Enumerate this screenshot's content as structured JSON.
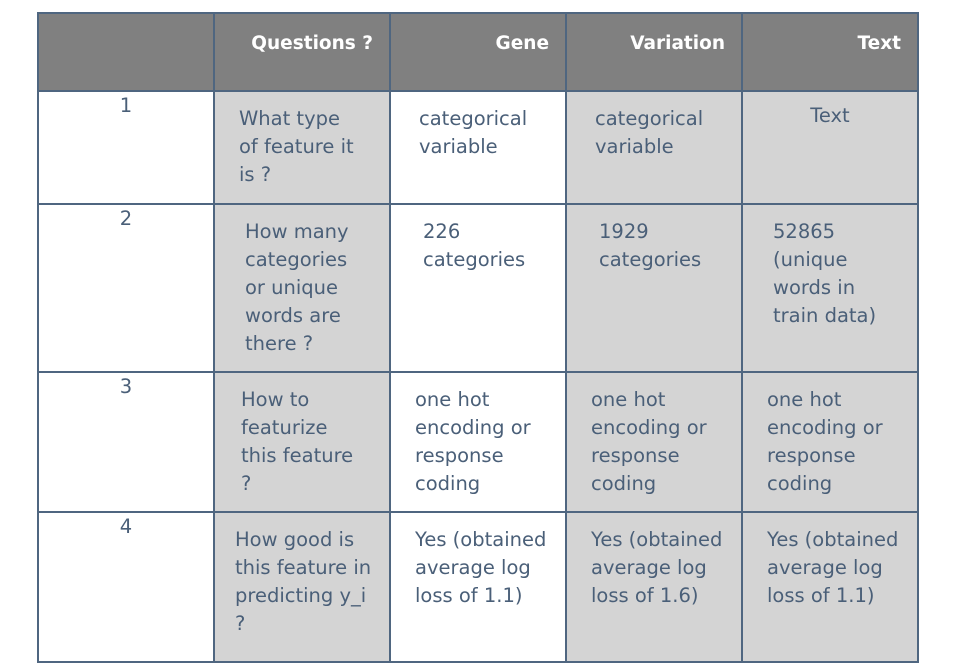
{
  "table": {
    "headers": [
      "",
      "Questions ?",
      "Gene",
      "Variation",
      "Text"
    ],
    "rows": [
      {
        "index": "1",
        "question": "What type of feature it is ?",
        "gene": "categorical variable",
        "variation": "categorical variable",
        "text": "Text"
      },
      {
        "index": "2",
        "question": "How many categories or unique words are there ?",
        "gene": "226 categories",
        "variation": "1929 categories",
        "text": "52865 (unique words in train data)"
      },
      {
        "index": "3",
        "question": "How to featurize this feature ?",
        "gene": "one hot encoding or response coding",
        "variation": "one hot encoding or response coding",
        "text": "one hot encoding or response coding"
      },
      {
        "index": "4",
        "question": "How good is this feature in predicting y_i ?",
        "gene": "Yes (obtained average log loss of 1.1)",
        "variation": "Yes (obtained average log loss of 1.6)",
        "text": "Yes (obtained average log loss of 1.1)"
      }
    ]
  }
}
